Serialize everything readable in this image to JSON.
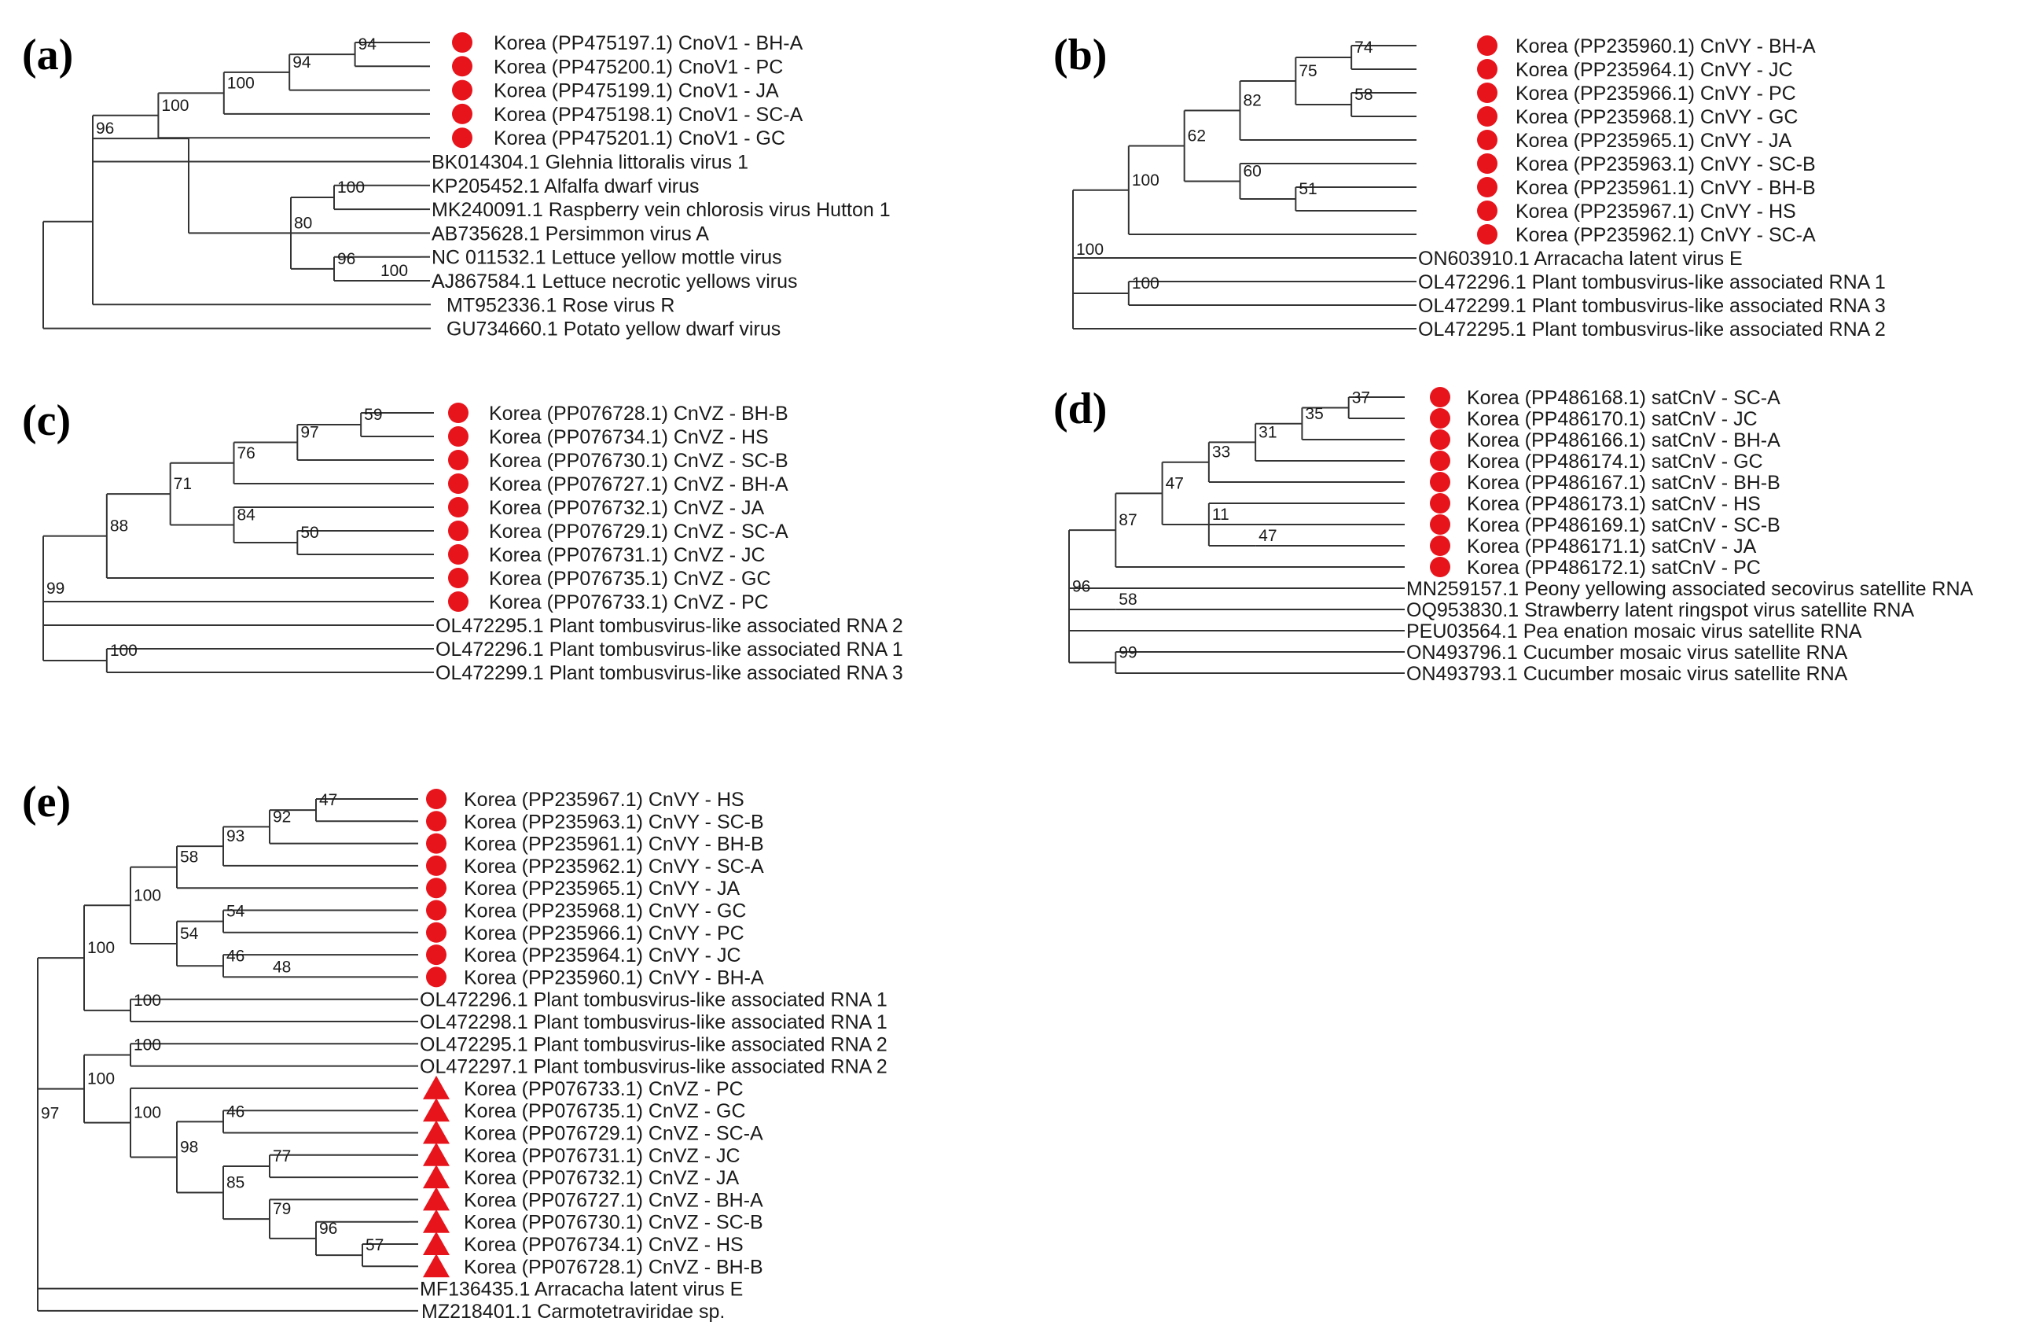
{
  "panels": [
    {
      "id": "a",
      "label": "(a)",
      "colors": {
        "marker": "#e8141c"
      },
      "tree": {
        "b": "96",
        "c": [
          {
            "b": "100",
            "c": [
              {
                "b": "100",
                "c": [
                  {
                    "b": "94",
                    "c": [
                      {
                        "b": "94",
                        "c": [
                          {
                            "label": "Korea (PP475197.1) CnoV1 - BH-A",
                            "marker": "circle"
                          },
                          {
                            "label": "Korea (PP475200.1) CnoV1 - PC",
                            "marker": "circle"
                          }
                        ]
                      },
                      {
                        "label": "Korea (PP475199.1) CnoV1 - JA",
                        "marker": "circle"
                      }
                    ]
                  },
                  {
                    "label": "Korea (PP475198.1) CnoV1 - SC-A",
                    "marker": "circle"
                  }
                ]
              },
              {
                "label": "Korea (PP475201.1) CnoV1 - GC",
                "marker": "circle"
              }
            ]
          },
          {
            "label": "BK014304.1 Glehnia littoralis virus 1"
          }
        ]
      }
    },
    {
      "id": "a2",
      "label": "",
      "colors": {
        "marker": "#e8141c"
      },
      "tree": {
        "b": "80",
        "c": [
          {
            "b": "100",
            "c": [
              {
                "label": "KP205452.1 Alfalfa dwarf virus"
              },
              {
                "label": "MK240091.1 Raspberry vein chlorosis virus Hutton 1"
              }
            ]
          },
          {
            "label": "AB735628.1 Persimmon virus A"
          },
          {
            "b": "96",
            "c": [
              {
                "label": "NC 011532.1 Lettuce yellow mottle virus"
              },
              {
                "b": "100",
                "c": [
                  {
                    "label": "AJ867584.1 Lettuce necrotic yellows virus"
                  }
                ]
              }
            ]
          }
        ]
      }
    },
    {
      "id": "b",
      "label": "(b)",
      "colors": {
        "marker": "#e8141c"
      },
      "tree": {
        "b": "100",
        "c": [
          {
            "b": "100",
            "c": [
              {
                "b": "62",
                "c": [
                  {
                    "b": "82",
                    "c": [
                      {
                        "b": "75",
                        "c": [
                          {
                            "b": "74",
                            "c": [
                              {
                                "label": "Korea (PP235960.1) CnVY - BH-A",
                                "marker": "circle"
                              },
                              {
                                "label": "Korea (PP235964.1) CnVY - JC",
                                "marker": "circle"
                              }
                            ]
                          },
                          {
                            "b": "58",
                            "c": [
                              {
                                "label": "Korea (PP235966.1) CnVY - PC",
                                "marker": "circle"
                              },
                              {
                                "label": "Korea (PP235968.1) CnVY - GC",
                                "marker": "circle"
                              }
                            ]
                          }
                        ]
                      },
                      {
                        "label": "Korea (PP235965.1) CnVY - JA",
                        "marker": "circle"
                      }
                    ]
                  },
                  {
                    "b": "60",
                    "c": [
                      {
                        "label": "Korea (PP235963.1) CnVY - SC-B",
                        "marker": "circle"
                      },
                      {
                        "b": "51",
                        "c": [
                          {
                            "label": "Korea (PP235961.1) CnVY - BH-B",
                            "marker": "circle"
                          },
                          {
                            "label": "Korea (PP235967.1) CnVY - HS",
                            "marker": "circle"
                          }
                        ]
                      }
                    ]
                  }
                ]
              },
              {
                "label": "Korea (PP235962.1) CnVY - SC-A",
                "marker": "circle"
              }
            ]
          },
          {
            "label": "ON603910.1 Arracacha latent virus E"
          },
          {
            "b": "100",
            "c": [
              {
                "label": "OL472296.1 Plant tombusvirus-like associated RNA 1"
              },
              {
                "label": "OL472299.1 Plant tombusvirus-like associated RNA 3"
              }
            ]
          },
          {
            "label": "OL472295.1 Plant tombusvirus-like associated RNA 2"
          }
        ]
      }
    },
    {
      "id": "c",
      "label": "(c)",
      "colors": {
        "marker": "#e8141c"
      },
      "tree": {
        "b": "99",
        "c": [
          {
            "b": "88",
            "c": [
              {
                "b": "71",
                "c": [
                  {
                    "b": "76",
                    "c": [
                      {
                        "b": "97",
                        "c": [
                          {
                            "b": "59",
                            "c": [
                              {
                                "label": "Korea (PP076728.1) CnVZ - BH-B",
                                "marker": "circle"
                              },
                              {
                                "label": "Korea (PP076734.1) CnVZ - HS",
                                "marker": "circle"
                              }
                            ]
                          },
                          {
                            "label": "Korea (PP076730.1) CnVZ - SC-B",
                            "marker": "circle"
                          }
                        ]
                      },
                      {
                        "label": "Korea (PP076727.1) CnVZ - BH-A",
                        "marker": "circle"
                      }
                    ]
                  },
                  {
                    "b": "84",
                    "c": [
                      {
                        "label": "Korea (PP076732.1) CnVZ - JA",
                        "marker": "circle"
                      },
                      {
                        "b": "50",
                        "c": [
                          {
                            "label": "Korea (PP076729.1) CnVZ - SC-A",
                            "marker": "circle"
                          },
                          {
                            "label": "Korea (PP076731.1) CnVZ - JC",
                            "marker": "circle"
                          }
                        ]
                      }
                    ]
                  }
                ]
              },
              {
                "label": "Korea (PP076735.1) CnVZ - GC",
                "marker": "circle"
              }
            ]
          },
          {
            "label": "Korea (PP076733.1) CnVZ - PC",
            "marker": "circle"
          },
          {
            "label": "OL472295.1 Plant tombusvirus-like associated RNA 2"
          },
          {
            "b": "100",
            "c": [
              {
                "label": "OL472296.1 Plant tombusvirus-like associated RNA 1"
              },
              {
                "label": "OL472299.1 Plant tombusvirus-like associated RNA 3"
              }
            ]
          }
        ]
      }
    },
    {
      "id": "d",
      "label": "(d)",
      "colors": {
        "marker": "#e8141c"
      },
      "tree": {
        "b": "96",
        "c": [
          {
            "b": "87",
            "c": [
              {
                "b": "47",
                "c": [
                  {
                    "b": "33",
                    "c": [
                      {
                        "b": "31",
                        "c": [
                          {
                            "b": "35",
                            "c": [
                              {
                                "b": "37",
                                "c": [
                                  {
                                    "label": "Korea (PP486168.1) satCnV - SC-A",
                                    "marker": "circle"
                                  },
                                  {
                                    "label": "Korea (PP486170.1) satCnV - JC",
                                    "marker": "circle"
                                  }
                                ]
                              },
                              {
                                "label": "Korea (PP486166.1) satCnV - BH-A",
                                "marker": "circle"
                              }
                            ]
                          },
                          {
                            "label": "Korea (PP486174.1) satCnV - GC",
                            "marker": "circle"
                          }
                        ]
                      },
                      {
                        "label": "Korea (PP486167.1) satCnV - BH-B",
                        "marker": "circle"
                      }
                    ]
                  },
                  {
                    "b": "11",
                    "c": [
                      {
                        "label": "Korea (PP486173.1) satCnV - HS",
                        "marker": "circle"
                      },
                      {
                        "label": "Korea (PP486169.1) satCnV - SC-B",
                        "marker": "circle"
                      },
                      {
                        "b": "47",
                        "c": [
                          {
                            "label": "Korea (PP486171.1) satCnV - JA",
                            "marker": "circle"
                          }
                        ]
                      }
                    ]
                  }
                ]
              },
              {
                "label": "Korea (PP486172.1) satCnV - PC",
                "marker": "circle"
              }
            ]
          },
          {
            "label": "MN259157.1 Peony yellowing associated secovirus satellite RNA"
          },
          {
            "b": "58",
            "c": [
              {
                "label": "OQ953830.1 Strawberry latent ringspot virus satellite RNA"
              }
            ]
          },
          {
            "label": "PEU03564.1 Pea enation mosaic virus satellite RNA"
          },
          {
            "b": "99",
            "c": [
              {
                "label": "ON493796.1 Cucumber mosaic virus satellite RNA"
              },
              {
                "label": "ON493793.1 Cucumber mosaic virus satellite RNA"
              }
            ]
          }
        ]
      }
    },
    {
      "id": "e",
      "label": "(e)",
      "colors": {
        "marker": "#e8141c"
      },
      "tree": {
        "b": "97",
        "c": [
          {
            "b": "100",
            "c": [
              {
                "b": "100",
                "c": [
                  {
                    "b": "58",
                    "c": [
                      {
                        "b": "93",
                        "c": [
                          {
                            "b": "92",
                            "c": [
                              {
                                "b": "47",
                                "c": [
                                  {
                                    "label": "Korea (PP235967.1) CnVY - HS",
                                    "marker": "circle"
                                  },
                                  {
                                    "label": "Korea (PP235963.1) CnVY - SC-B",
                                    "marker": "circle"
                                  }
                                ]
                              },
                              {
                                "label": "Korea (PP235961.1) CnVY - BH-B",
                                "marker": "circle"
                              }
                            ]
                          },
                          {
                            "label": "Korea (PP235962.1) CnVY - SC-A",
                            "marker": "circle"
                          }
                        ]
                      },
                      {
                        "label": "Korea (PP235965.1) CnVY - JA",
                        "marker": "circle"
                      }
                    ]
                  },
                  {
                    "b": "54",
                    "c": [
                      {
                        "b": "54",
                        "c": [
                          {
                            "label": "Korea (PP235968.1) CnVY - GC",
                            "marker": "circle"
                          },
                          {
                            "label": "Korea (PP235966.1) CnVY - PC",
                            "marker": "circle"
                          }
                        ]
                      },
                      {
                        "b": "46",
                        "c": [
                          {
                            "label": "Korea (PP235964.1) CnVY - JC",
                            "marker": "circle"
                          },
                          {
                            "b": "48",
                            "c": [
                              {
                                "label": "Korea (PP235960.1) CnVY - BH-A",
                                "marker": "circle"
                              }
                            ]
                          }
                        ]
                      }
                    ]
                  }
                ]
              },
              {
                "b": "100",
                "c": [
                  {
                    "label": "OL472296.1 Plant tombusvirus-like associated RNA 1"
                  },
                  {
                    "label": "OL472298.1 Plant tombusvirus-like associated RNA 1"
                  }
                ]
              }
            ]
          },
          {
            "b": "100",
            "c": [
              {
                "b": "100",
                "c": [
                  {
                    "label": "OL472295.1 Plant tombusvirus-like associated RNA 2"
                  },
                  {
                    "label": "OL472297.1 Plant tombusvirus-like associated RNA 2"
                  }
                ]
              },
              {
                "b": "100",
                "c": [
                  {
                    "label": "Korea (PP076733.1) CnVZ - PC",
                    "marker": "triangle"
                  },
                  {
                    "b": "98",
                    "c": [
                      {
                        "b": "46",
                        "c": [
                          {
                            "label": "Korea (PP076735.1) CnVZ - GC",
                            "marker": "triangle"
                          },
                          {
                            "label": "Korea (PP076729.1) CnVZ - SC-A",
                            "marker": "triangle"
                          }
                        ]
                      },
                      {
                        "b": "85",
                        "c": [
                          {
                            "b": "77",
                            "c": [
                              {
                                "label": "Korea (PP076731.1) CnVZ - JC",
                                "marker": "triangle"
                              },
                              {
                                "label": "Korea (PP076732.1) CnVZ - JA",
                                "marker": "triangle"
                              }
                            ]
                          },
                          {
                            "b": "79",
                            "c": [
                              {
                                "label": "Korea (PP076727.1) CnVZ - BH-A",
                                "marker": "triangle"
                              },
                              {
                                "b": "96",
                                "c": [
                                  {
                                    "label": "Korea (PP076730.1) CnVZ - SC-B",
                                    "marker": "triangle"
                                  },
                                  {
                                    "b": "57",
                                    "c": [
                                      {
                                        "label": "Korea (PP076734.1) CnVZ - HS",
                                        "marker": "triangle"
                                      },
                                      {
                                        "label": "Korea (PP076728.1) CnVZ - BH-B",
                                        "marker": "triangle"
                                      }
                                    ]
                                  }
                                ]
                              }
                            ]
                          }
                        ]
                      }
                    ]
                  }
                ]
              }
            ]
          },
          {
            "label": "MF136435.1 Arracacha latent virus E"
          }
        ]
      }
    }
  ],
  "extra_leaves_a": [
    {
      "label": "MT952336.1 Rose virus R"
    },
    {
      "label": "GU734660.1 Potato yellow dwarf virus"
    }
  ],
  "extra_leaf_e": {
    "label": "MZ218401.1 Carmotetraviridae sp."
  }
}
